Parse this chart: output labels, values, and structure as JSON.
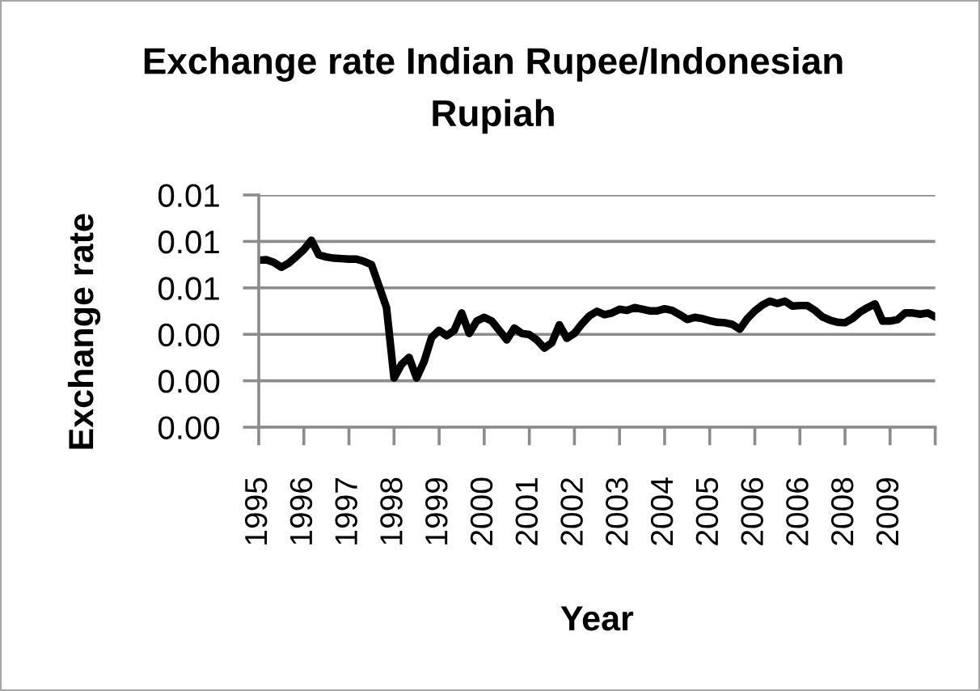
{
  "chart_data": {
    "type": "line",
    "title": "Exchange rate Indian Rupee/Indonesian Rupiah",
    "xlabel": "Year",
    "ylabel": "Exchange rate",
    "categories": [
      "1995",
      null,
      null,
      null,
      null,
      null,
      "1996",
      null,
      null,
      null,
      null,
      null,
      "1997",
      null,
      null,
      null,
      null,
      null,
      "1998",
      null,
      null,
      null,
      null,
      null,
      "1999",
      null,
      null,
      null,
      null,
      null,
      "2000",
      null,
      null,
      null,
      null,
      null,
      "2001",
      null,
      null,
      null,
      null,
      null,
      "2002",
      null,
      null,
      null,
      null,
      null,
      "2003",
      null,
      null,
      null,
      null,
      null,
      "2004",
      null,
      null,
      null,
      null,
      null,
      "2005",
      null,
      null,
      null,
      null,
      null,
      "2006",
      null,
      null,
      null,
      null,
      null,
      "2006",
      null,
      null,
      null,
      null,
      null,
      "2008",
      null,
      null,
      null,
      null,
      null,
      "2009",
      null,
      null,
      null,
      null,
      null,
      null
    ],
    "values": [
      0.00719,
      0.00721,
      0.0071,
      0.00689,
      0.00707,
      0.00735,
      0.00765,
      0.00805,
      0.00742,
      0.00733,
      0.00728,
      0.00726,
      0.00724,
      0.00724,
      0.00714,
      0.007,
      0.00608,
      0.00515,
      0.00212,
      0.00271,
      0.00301,
      0.00212,
      0.00283,
      0.00387,
      0.00417,
      0.00394,
      0.00417,
      0.00492,
      0.00404,
      0.00457,
      0.00473,
      0.00457,
      0.00417,
      0.00376,
      0.00427,
      0.00404,
      0.00399,
      0.00376,
      0.00341,
      0.00364,
      0.00441,
      0.00383,
      0.00404,
      0.00445,
      0.0048,
      0.00499,
      0.00485,
      0.00492,
      0.00508,
      0.00503,
      0.00515,
      0.00508,
      0.00501,
      0.00501,
      0.0051,
      0.00503,
      0.00485,
      0.00464,
      0.00473,
      0.00468,
      0.00459,
      0.00452,
      0.0045,
      0.00443,
      0.00422,
      0.00468,
      0.00501,
      0.00526,
      0.00543,
      0.00533,
      0.00543,
      0.00522,
      0.00524,
      0.00524,
      0.00503,
      0.00475,
      0.00461,
      0.00452,
      0.0045,
      0.00468,
      0.00496,
      0.00515,
      0.00531,
      0.00457,
      0.00457,
      0.00464,
      0.00492,
      0.00492,
      0.00487,
      0.00492,
      0.00475
    ],
    "color": "#000000",
    "ylim": [
      0,
      0.01
    ],
    "yticks": [
      {
        "value": 0,
        "label": "0.00"
      },
      {
        "value": 0.002,
        "label": "0.00"
      },
      {
        "value": 0.004,
        "label": "0.00"
      },
      {
        "value": 0.006,
        "label": "0.01"
      },
      {
        "value": 0.008,
        "label": "0.01"
      },
      {
        "value": 0.01,
        "label": "0.01"
      }
    ],
    "grid": "y"
  }
}
